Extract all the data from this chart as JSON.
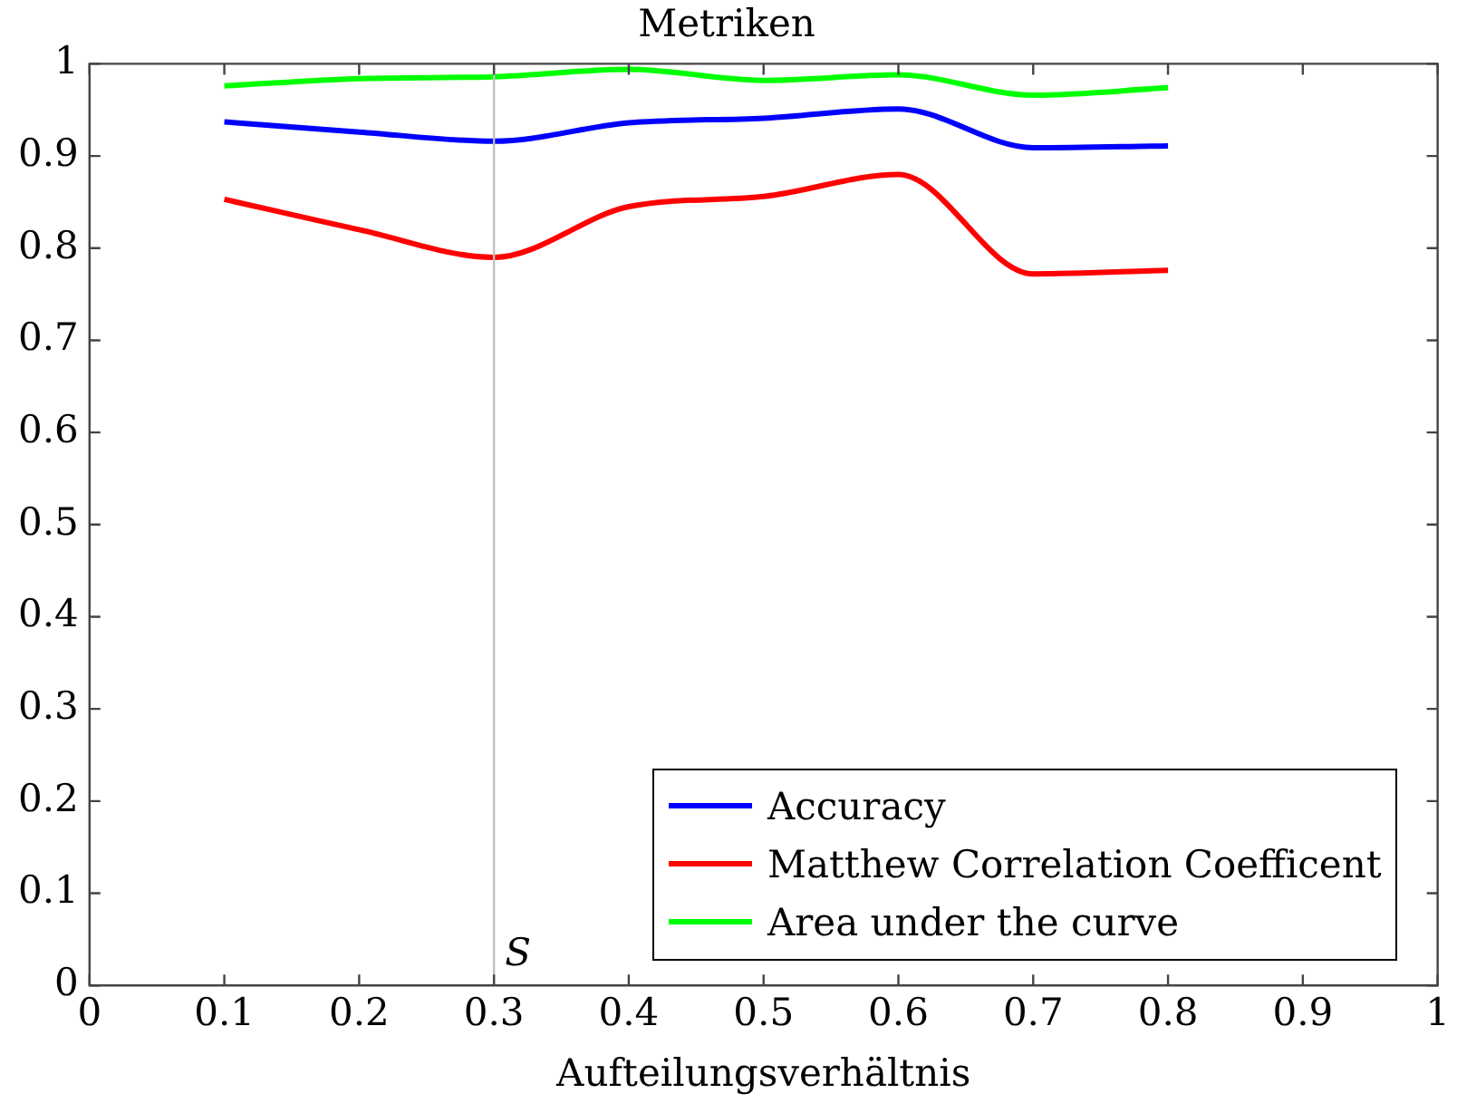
{
  "chart_data": {
    "type": "line",
    "title": "Metriken",
    "xlabel": "Aufteilungsverhältnis",
    "x": [
      0.1,
      0.2,
      0.3,
      0.4,
      0.5,
      0.6,
      0.7,
      0.8
    ],
    "series": [
      {
        "name": "Accuracy",
        "color": "#0000ff",
        "values": [
          0.937,
          0.926,
          0.916,
          0.936,
          0.941,
          0.951,
          0.909,
          0.911
        ]
      },
      {
        "name": "Matthew Correlation Coefficent",
        "color": "#ff0000",
        "values": [
          0.853,
          0.82,
          0.79,
          0.845,
          0.856,
          0.88,
          0.772,
          0.776
        ]
      },
      {
        "name": "Area under the curve",
        "color": "#00ff00",
        "values": [
          0.976,
          0.984,
          0.986,
          0.994,
          0.982,
          0.988,
          0.966,
          0.974
        ]
      }
    ],
    "xlim": [
      0,
      1
    ],
    "ylim": [
      0,
      1
    ],
    "xticks": [
      0,
      0.1,
      0.2,
      0.3,
      0.4,
      0.5,
      0.6,
      0.7,
      0.8,
      0.9,
      1
    ],
    "yticks": [
      0,
      0.1,
      0.2,
      0.3,
      0.4,
      0.5,
      0.6,
      0.7,
      0.8,
      0.9,
      1
    ],
    "ref_lines": [
      {
        "axis": "x",
        "value": 0.3,
        "label": "S",
        "color": "#bfbfbf"
      }
    ],
    "legend": "bottom right",
    "grid": false,
    "marker": "none",
    "line_style": "solid"
  }
}
